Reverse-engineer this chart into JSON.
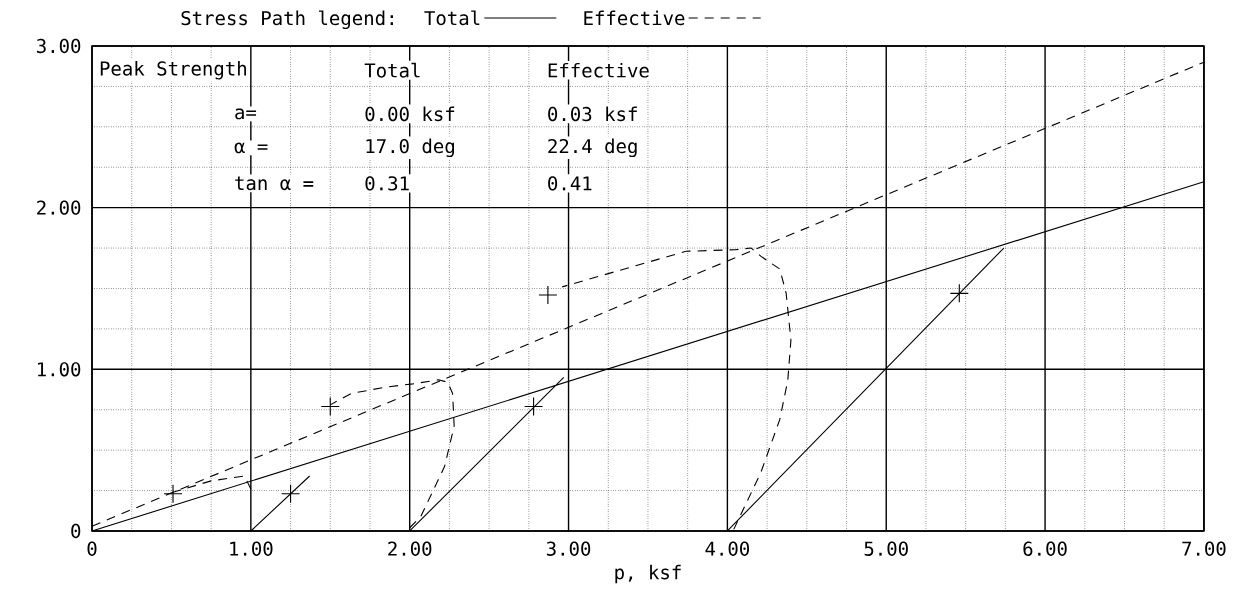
{
  "chart_data": {
    "type": "line",
    "legend_title": "Stress Path legend:",
    "xlabel": "p,  ksf",
    "annotations": [
      "Peak Strength",
      "Total",
      "Effective",
      "a=",
      "0.00 ksf",
      "0.03 ksf",
      "α =",
      "17.0 deg",
      "22.4 deg",
      "tan α =",
      "0.31",
      "0.41"
    ],
    "xlim": [
      0,
      7
    ],
    "ylim": [
      0,
      3
    ],
    "xticks": [
      0,
      {
        "value": 1,
        "label": "1.00"
      },
      {
        "value": 2,
        "label": "2.00"
      },
      {
        "value": 3,
        "label": "3.00"
      },
      {
        "value": 4,
        "label": "4.00"
      },
      {
        "value": 5,
        "label": "5.00"
      },
      {
        "value": 6,
        "label": "6.00"
      },
      {
        "value": 7,
        "label": "7.00"
      }
    ],
    "yticks": [
      0,
      {
        "value": 1,
        "label": "1.00"
      },
      {
        "value": 2,
        "label": "2.00"
      },
      {
        "value": 3,
        "label": "3.00"
      }
    ],
    "grid": true,
    "legend": "top",
    "series": [
      {
        "name": "Total",
        "type": "line",
        "line_style": "solid",
        "color": "#000000",
        "x": [
          0,
          7,
          null,
          1,
          1.37,
          null,
          2,
          2.97,
          null,
          4,
          5.74
        ],
        "values": [
          0,
          2.16,
          null,
          0,
          0.34,
          null,
          0,
          0.95,
          null,
          0,
          1.75
        ]
      },
      {
        "name": "Effective",
        "type": "line",
        "line_style": "dashed",
        "color": "#000000",
        "x": [
          0,
          7,
          null,
          1.0,
          0.96,
          0.75,
          0.51,
          null,
          2.0,
          2.07,
          2.22,
          2.28,
          2.27,
          2.24,
          2.18,
          2.02,
          1.85,
          1.63,
          1.5,
          null,
          4.04,
          4.21,
          4.33,
          4.38,
          4.4,
          4.37,
          4.33,
          4.21,
          4.15,
          4.05,
          3.74,
          2.96
        ],
        "values": [
          0.03,
          2.9,
          null,
          0.26,
          0.34,
          0.31,
          0.24,
          null,
          0.02,
          0.09,
          0.4,
          0.65,
          0.85,
          0.92,
          0.935,
          0.91,
          0.89,
          0.85,
          0.78,
          null,
          0.01,
          0.36,
          0.69,
          0.93,
          1.18,
          1.47,
          1.62,
          1.7,
          1.75,
          1.74,
          1.73,
          1.51
        ]
      },
      {
        "type": "scatter",
        "marker": "cross",
        "color": "#000000",
        "x": [
          0.51,
          1.25,
          1.5,
          2.78,
          2.87,
          5.46
        ],
        "values": [
          0.23,
          0.23,
          0.77,
          0.77,
          1.46,
          1.47
        ]
      }
    ]
  }
}
